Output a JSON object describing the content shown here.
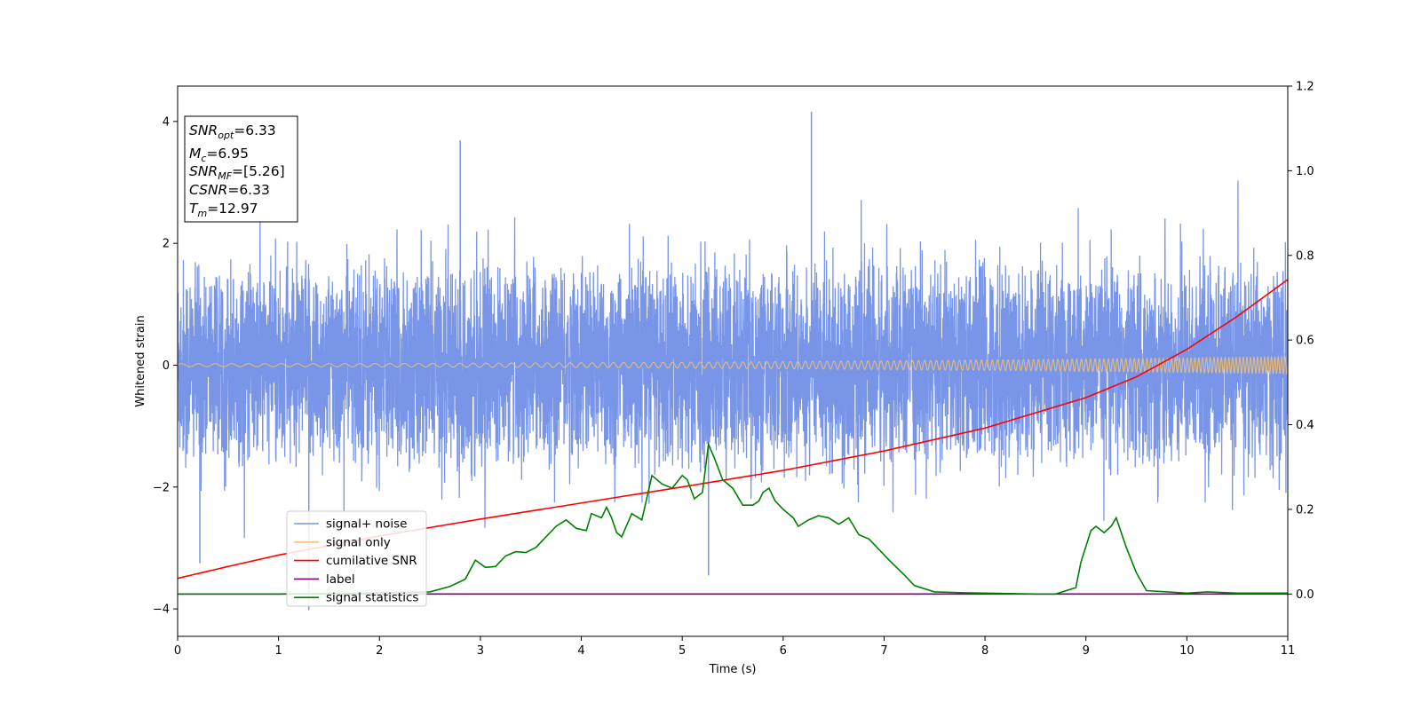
{
  "chart_data": {
    "type": "line",
    "title": "",
    "xlabel": "Time (s)",
    "ylabel": "Whitened strain",
    "ylabel_right": "",
    "xlim": [
      0,
      11
    ],
    "ylim": [
      -4.45,
      4.58
    ],
    "ylim_right": [
      -0.1,
      1.2
    ],
    "xticks": [
      0,
      1,
      2,
      3,
      4,
      5,
      6,
      7,
      8,
      9,
      10,
      11
    ],
    "yticks": [
      -4,
      -2,
      0,
      2,
      4
    ],
    "yticks_right": [
      "0.0",
      "0.2",
      "0.4",
      "0.6",
      "0.8",
      "1.0",
      "1.2"
    ],
    "yticks_right_values": [
      0.0,
      0.2,
      0.4,
      0.6,
      0.8,
      1.0,
      1.2
    ],
    "grid": false,
    "legend_position": "lower-left",
    "annotation_box": {
      "snr_opt": {
        "main": "SNR",
        "sub": "opt",
        "value": "=6.33"
      },
      "mc": {
        "main": "M",
        "sub": "c",
        "value": "=6.95"
      },
      "snr_mf": {
        "main": "SNR",
        "sub": "MF",
        "value": "=[5.26]"
      },
      "csnr": {
        "main": "CSNR",
        "sub": "",
        "value": "=6.33"
      },
      "tm": {
        "main": "T",
        "sub": "m",
        "value": "=12.97"
      }
    },
    "series": [
      {
        "name": "signal+ noise",
        "axis": "left",
        "color": "#7895e8",
        "sample_rate_per_s": 600,
        "sigma": 0.85,
        "envelope_min": [
          -1.7,
          1.7
        ],
        "notable_peaks": [
          [
            6.28,
            4.16
          ],
          [
            1.3,
            -4.02
          ],
          [
            5.26,
            -3.45
          ],
          [
            2.8,
            3.69
          ],
          [
            0.22,
            -3.25
          ]
        ]
      },
      {
        "name": "signal only",
        "axis": "left",
        "color": "#f5c270",
        "amplitude_start": 0.025,
        "amplitude_end": 0.14,
        "freq_start_hz": 6,
        "freq_end_hz": 30
      },
      {
        "name": "cumilative SNR",
        "axis": "right",
        "color": "#ff0000",
        "x": [
          0,
          0.5,
          1,
          2,
          3,
          4,
          5,
          6,
          7,
          8,
          9,
          9.5,
          10,
          10.5,
          11
        ],
        "values": [
          0.037,
          0.065,
          0.092,
          0.137,
          0.177,
          0.215,
          0.253,
          0.292,
          0.338,
          0.392,
          0.464,
          0.513,
          0.578,
          0.656,
          0.743
        ]
      },
      {
        "name": "label",
        "axis": "right",
        "color": "#800080",
        "x": [
          0,
          11
        ],
        "values": [
          0.0,
          0.0
        ]
      },
      {
        "name": "signal statistics",
        "axis": "right",
        "color": "#008000",
        "x": [
          0,
          1,
          2,
          2.5,
          2.7,
          2.85,
          2.95,
          3.05,
          3.15,
          3.25,
          3.35,
          3.45,
          3.55,
          3.65,
          3.75,
          3.85,
          3.95,
          4.05,
          4.1,
          4.2,
          4.25,
          4.3,
          4.35,
          4.4,
          4.5,
          4.6,
          4.7,
          4.8,
          4.9,
          5.0,
          5.05,
          5.12,
          5.2,
          5.26,
          5.32,
          5.4,
          5.5,
          5.6,
          5.7,
          5.76,
          5.8,
          5.86,
          5.92,
          6.0,
          6.05,
          6.1,
          6.15,
          6.25,
          6.35,
          6.45,
          6.55,
          6.65,
          6.75,
          6.85,
          6.95,
          7.05,
          7.2,
          7.3,
          7.5,
          7.8,
          8.0,
          8.5,
          8.7,
          8.9,
          8.95,
          9.05,
          9.1,
          9.18,
          9.25,
          9.3,
          9.4,
          9.5,
          9.6,
          10.0,
          10.2,
          10.5,
          11.0
        ],
        "values": [
          0.0,
          0.0,
          0.003,
          0.005,
          0.018,
          0.035,
          0.08,
          0.063,
          0.065,
          0.09,
          0.1,
          0.098,
          0.11,
          0.135,
          0.16,
          0.175,
          0.155,
          0.15,
          0.19,
          0.18,
          0.205,
          0.18,
          0.145,
          0.135,
          0.19,
          0.175,
          0.28,
          0.26,
          0.25,
          0.28,
          0.27,
          0.225,
          0.24,
          0.354,
          0.32,
          0.27,
          0.25,
          0.21,
          0.21,
          0.22,
          0.24,
          0.25,
          0.22,
          0.2,
          0.19,
          0.18,
          0.16,
          0.175,
          0.185,
          0.18,
          0.165,
          0.18,
          0.14,
          0.13,
          0.105,
          0.08,
          0.045,
          0.02,
          0.005,
          0.003,
          0.002,
          0.0,
          0.0,
          0.015,
          0.075,
          0.15,
          0.16,
          0.145,
          0.16,
          0.18,
          0.11,
          0.05,
          0.008,
          0.002,
          0.005,
          0.002,
          0.002
        ]
      }
    ]
  }
}
